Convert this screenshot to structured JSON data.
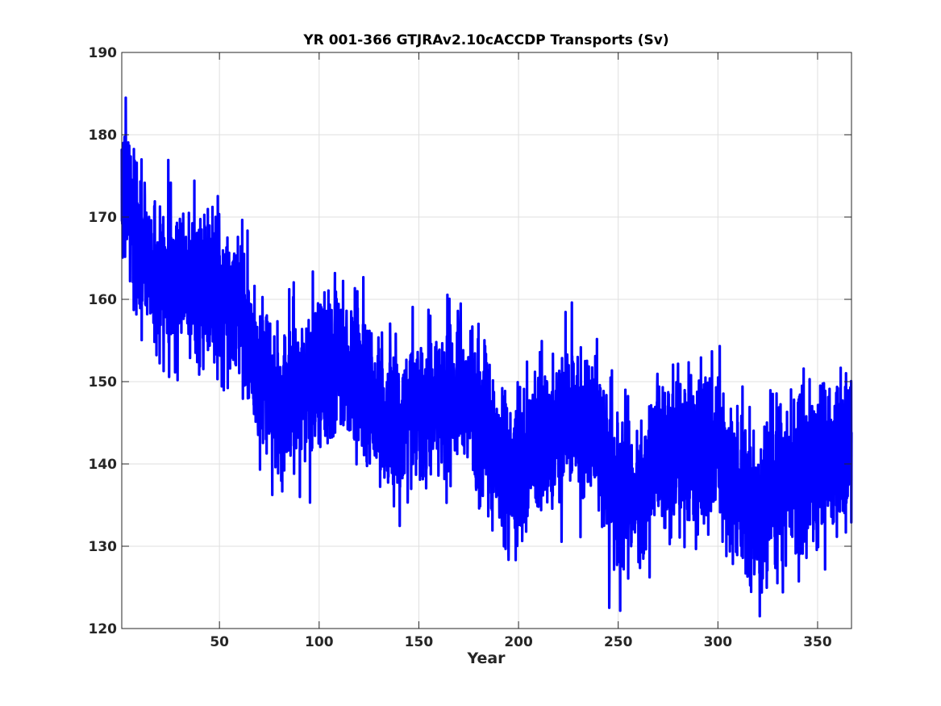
{
  "chart_data": {
    "type": "line",
    "title": "YR 001-366 GTJRAv2.10cACCDP Transports (Sv)",
    "xlabel": "Year",
    "ylabel": "",
    "xlim": [
      1,
      367
    ],
    "ylim": [
      120,
      190
    ],
    "xticks": [
      50,
      100,
      150,
      200,
      250,
      300,
      350
    ],
    "yticks": [
      120,
      130,
      140,
      150,
      160,
      170,
      180,
      190
    ],
    "grid": true,
    "box": true,
    "sampling": "monthly means (12 values per year), values approximate; shown as 10-year anchor means of the depicted trend plus the observed spread",
    "series": [
      {
        "color": "#0000ff",
        "trend_anchors": {
          "x": [
            1,
            5,
            10,
            20,
            30,
            40,
            50,
            60,
            70,
            80,
            90,
            100,
            110,
            120,
            130,
            140,
            150,
            160,
            170,
            180,
            190,
            200,
            210,
            220,
            230,
            240,
            250,
            260,
            270,
            280,
            290,
            300,
            310,
            320,
            330,
            340,
            350,
            360,
            367
          ],
          "y": [
            174,
            172,
            166,
            162,
            163,
            162,
            161,
            159,
            151,
            147,
            149,
            151,
            152,
            151,
            146,
            145,
            147,
            147,
            148,
            147,
            140,
            139,
            143,
            144,
            145,
            144,
            137,
            136,
            141,
            141,
            142,
            142,
            137,
            134,
            138,
            139,
            140,
            141,
            141
          ]
        },
        "spread_sv": 4.5,
        "extremes": {
          "max": 184.5,
          "max_year": 3,
          "min": 121.5,
          "min_year": 321
        }
      }
    ]
  }
}
